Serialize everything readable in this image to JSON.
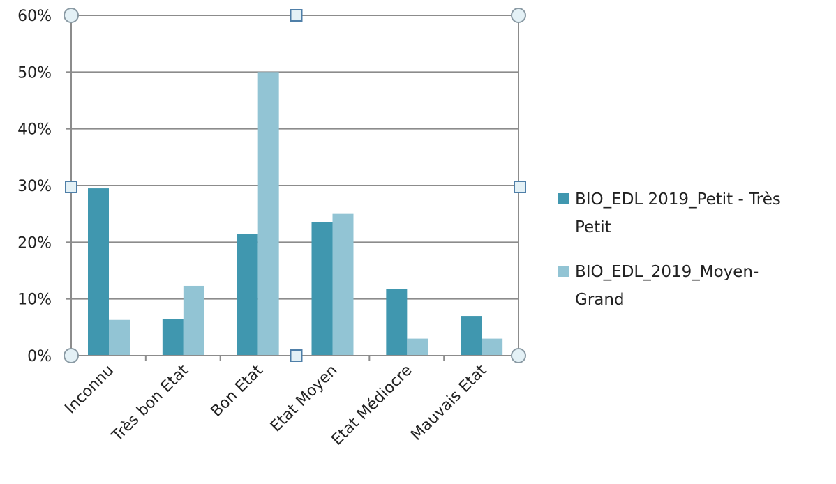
{
  "chart_data": {
    "type": "bar",
    "categories": [
      "Inconnu",
      "Très bon Etat",
      "Bon Etat",
      "Etat Moyen",
      "Etat Médiocre",
      "Mauvais Etat"
    ],
    "series": [
      {
        "name": "BIO_EDL 2019_Petit - Très Petit",
        "legend_lines": [
          "BIO_EDL 2019_Petit - Très",
          "Petit"
        ],
        "color": "#4097af",
        "values": [
          0.295,
          0.065,
          0.215,
          0.235,
          0.117,
          0.07
        ]
      },
      {
        "name": "BIO_EDL_2019_Moyen-Grand",
        "legend_lines": [
          "BIO_EDL_2019_Moyen-",
          "Grand"
        ],
        "color": "#92c4d4",
        "values": [
          0.063,
          0.123,
          0.5,
          0.25,
          0.03,
          0.03
        ]
      }
    ],
    "y_ticks": [
      "0%",
      "10%",
      "20%",
      "30%",
      "40%",
      "50%",
      "60%"
    ],
    "ylim": [
      0,
      0.6
    ],
    "grid": true,
    "legend": "right",
    "title": "",
    "xlabel": "",
    "ylabel": ""
  }
}
